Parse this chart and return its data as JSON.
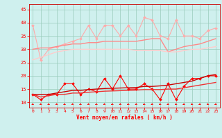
{
  "x": [
    0,
    1,
    2,
    3,
    4,
    5,
    6,
    7,
    8,
    9,
    10,
    11,
    12,
    13,
    14,
    15,
    16,
    17,
    18,
    19,
    20,
    21,
    22,
    23
  ],
  "series": [
    {
      "name": "light_pink_jagged",
      "color": "#ffaaaa",
      "linewidth": 0.8,
      "marker": "D",
      "markersize": 2.0,
      "values": [
        39,
        26,
        30,
        31,
        32,
        33,
        34,
        39,
        34,
        39,
        39,
        35,
        39,
        35,
        42,
        41,
        35,
        34,
        41,
        35,
        35,
        34,
        37,
        38
      ]
    },
    {
      "name": "pink_upper_smooth",
      "color": "#ff8888",
      "linewidth": 1.0,
      "marker": null,
      "markersize": 0,
      "values": [
        30,
        30.5,
        30.5,
        31,
        31.5,
        32,
        32,
        32.5,
        32.5,
        33,
        33,
        33,
        33,
        33,
        33.5,
        34,
        34,
        29,
        30,
        31,
        31.5,
        32,
        33,
        34
      ]
    },
    {
      "name": "pink_lower_smooth",
      "color": "#ffcccc",
      "linewidth": 1.0,
      "marker": null,
      "markersize": 0,
      "values": [
        26,
        27,
        28,
        29,
        29.5,
        30,
        30,
        30,
        30,
        30,
        30,
        30,
        30,
        29.5,
        29.5,
        29.5,
        29.5,
        29,
        29,
        29.5,
        30,
        30,
        30.5,
        31
      ]
    },
    {
      "name": "red_jagged",
      "color": "#ff0000",
      "linewidth": 0.8,
      "marker": "D",
      "markersize": 2.0,
      "values": [
        13,
        11,
        13,
        13,
        17,
        17,
        13,
        15,
        14,
        19,
        15,
        20,
        15,
        15,
        17,
        15,
        11,
        17,
        11,
        16,
        19,
        19,
        20,
        20
      ]
    },
    {
      "name": "red_upper_smooth",
      "color": "#cc0000",
      "linewidth": 1.0,
      "marker": null,
      "markersize": 0,
      "values": [
        13,
        13,
        13,
        13.5,
        14,
        14.5,
        14.5,
        14.8,
        15,
        15.2,
        15.3,
        15.4,
        15.5,
        15.6,
        16,
        16,
        16.2,
        16.5,
        17,
        17.5,
        18,
        19,
        20,
        20.5
      ]
    },
    {
      "name": "red_lower_smooth",
      "color": "#ee3333",
      "linewidth": 1.0,
      "marker": null,
      "markersize": 0,
      "values": [
        13,
        12,
        12.5,
        13,
        13,
        13.5,
        13.5,
        13.8,
        14,
        14.2,
        14.3,
        14.4,
        14.5,
        14.6,
        14.8,
        14.8,
        14.8,
        15,
        15,
        15.5,
        16,
        16.5,
        17,
        17.5
      ]
    }
  ],
  "xlabel": "Vent moyen/en rafales ( km/h )",
  "ylim": [
    8,
    47
  ],
  "yticks": [
    10,
    15,
    20,
    25,
    30,
    35,
    40,
    45
  ],
  "xlim": [
    -0.5,
    23.5
  ],
  "xticks": [
    0,
    1,
    2,
    3,
    4,
    5,
    6,
    7,
    8,
    9,
    10,
    11,
    12,
    13,
    14,
    15,
    16,
    17,
    18,
    19,
    20,
    21,
    22,
    23
  ],
  "background_color": "#cff0ee",
  "grid_color": "#99ccbb",
  "tick_color": "#ff0000",
  "label_color": "#ff0000",
  "spine_color": "#cc0000"
}
